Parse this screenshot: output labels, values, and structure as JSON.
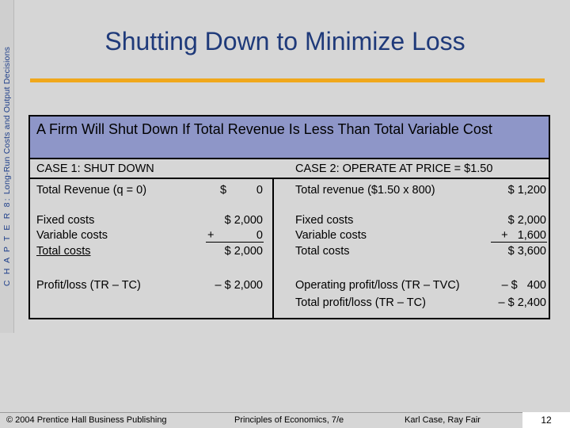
{
  "sidebar": {
    "chapter_label": "C H A P T E R  8:",
    "chapter_title": "Long-Run Costs and Output Decisions"
  },
  "title": "Shutting Down to Minimize Loss",
  "table": {
    "heading": "A Firm Will Shut Down If Total Revenue Is Less Than Total Variable Cost",
    "case1": {
      "header": "CASE 1:  SHUT DOWN",
      "revenue_label": "Total Revenue (q = 0)",
      "revenue_currency": "$",
      "revenue_value": "0",
      "fixed_label": "Fixed costs",
      "fixed_value": "$ 2,000",
      "variable_label": "Variable costs",
      "variable_sign": "+",
      "variable_value": "0",
      "total_label": "Total costs",
      "total_value": "$ 2,000",
      "profit_label": "Profit/loss (TR – TC)",
      "profit_value": "– $ 2,000"
    },
    "case2": {
      "header": "CASE 2:  OPERATE AT PRICE = $1.50",
      "revenue_label": "Total revenue ($1.50 x 800)",
      "revenue_value": "$ 1,200",
      "fixed_label": "Fixed costs",
      "fixed_value": "$ 2,000",
      "variable_label": "Variable costs",
      "variable_value": "+   1,600",
      "total_label": "Total costs",
      "total_value": "$ 3,600",
      "op_profit_label": "Operating profit/loss (TR – TVC)",
      "op_profit_value": "– $   400",
      "total_profit_label": "Total profit/loss (TR – TC)",
      "total_profit_value": "– $ 2,400"
    }
  },
  "footer": {
    "copyright": "© 2004 Prentice Hall Business Publishing",
    "book": "Principles of Economics, 7/e",
    "authors": "Karl Case, Ray Fair",
    "page_number": "12"
  },
  "colors": {
    "title": "#1f3a7a",
    "rule": "#f0a81c",
    "table_header": "#8e96c8",
    "background": "#d6d6d6"
  }
}
